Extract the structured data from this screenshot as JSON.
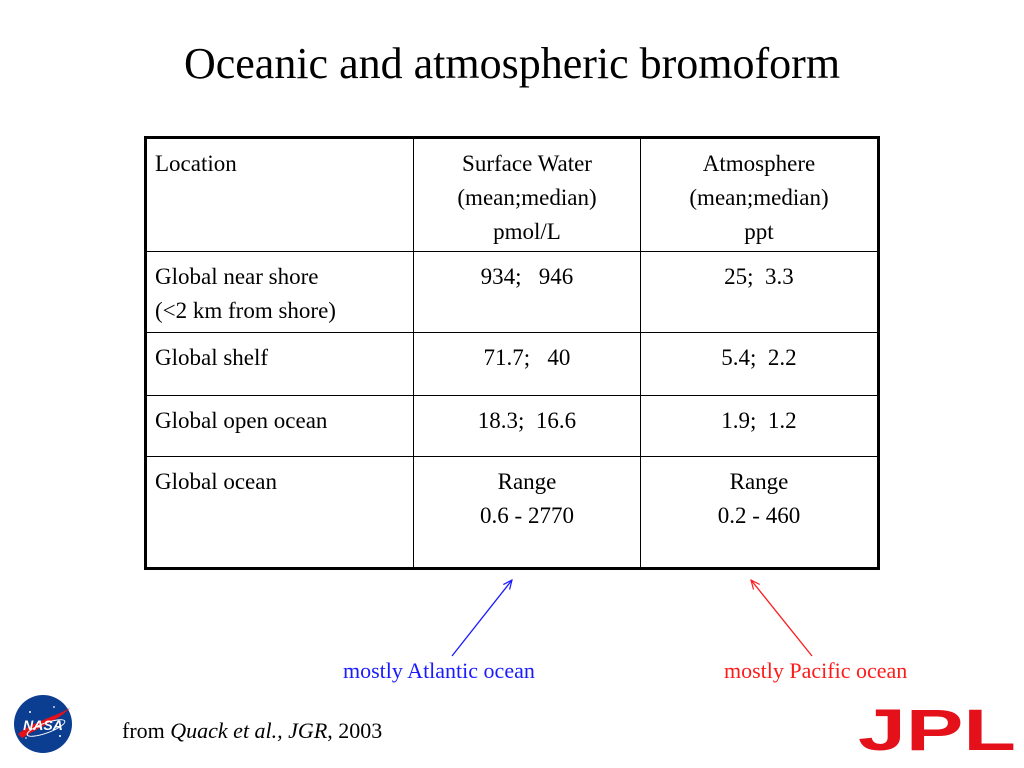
{
  "slide": {
    "title": "Oceanic and atmospheric bromoform"
  },
  "table": {
    "headers": [
      [
        "Location"
      ],
      [
        "Surface Water",
        "(mean;median)",
        "pmol/L"
      ],
      [
        "Atmosphere",
        "(mean;median)",
        "ppt"
      ]
    ],
    "rows": [
      {
        "location": [
          "Global near shore",
          "(<2 km from shore)"
        ],
        "surface": [
          "934;   946"
        ],
        "atmosphere": [
          "25;  3.3"
        ]
      },
      {
        "location": [
          "Global shelf"
        ],
        "surface": [
          "71.7;   40"
        ],
        "atmosphere": [
          "5.4;  2.2"
        ]
      },
      {
        "location": [
          "Global open ocean"
        ],
        "surface": [
          "18.3;  16.6"
        ],
        "atmosphere": [
          "1.9;  1.2"
        ]
      },
      {
        "location": [
          "Global ocean"
        ],
        "surface": [
          "Range",
          "0.6 - 2770"
        ],
        "atmosphere": [
          "Range",
          "0.2 - 460"
        ]
      }
    ]
  },
  "annotations": {
    "atlantic": "mostly Atlantic ocean",
    "pacific": "mostly Pacific ocean",
    "atlantic_color": "#1a1aff",
    "pacific_color": "#ff1a1a"
  },
  "citation": {
    "prefix": "from ",
    "authors": "Quack et al., JGR",
    "suffix": ", 2003"
  },
  "logos": {
    "nasa_text": "NASA",
    "jpl_text": "JPL",
    "jpl_color": "#e4101a",
    "nasa_color": "#0b3d91"
  }
}
